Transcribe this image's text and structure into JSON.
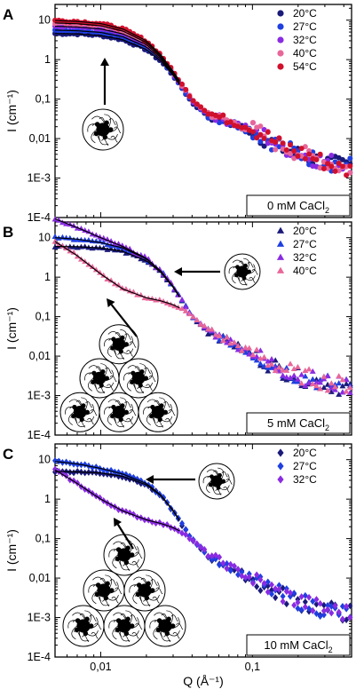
{
  "colors": {
    "20°C": "#1a1a7a",
    "27°C": "#1f3fe0",
    "32°C": "#8a2be2",
    "40°C": "#e8679a",
    "54°C": "#d0102c",
    "fit": "#000000"
  },
  "chart_data": [
    {
      "type": "scatter",
      "panel": "A",
      "marker": "circle",
      "xscale": "log",
      "yscale": "log",
      "xlim": [
        0.005,
        0.45
      ],
      "ylim": [
        0.0001,
        25
      ],
      "ylabel": "I (cm⁻¹)",
      "xlabel": "",
      "yticks": [
        "1E-4",
        "1E-3",
        "0,01",
        "0,1",
        "1",
        "10"
      ],
      "ytick_values": [
        0.0001,
        0.001,
        0.01,
        0.1,
        1,
        10
      ],
      "xticks": [],
      "xtick_values": [],
      "condition": "0 mM CaCl₂",
      "legend_loc": "top-right",
      "has_fit": true,
      "series": [
        {
          "name": "20°C",
          "color_key": "20°C",
          "x": [
            0.005,
            0.007,
            0.01,
            0.014,
            0.02,
            0.025,
            0.03,
            0.035,
            0.04,
            0.05,
            0.06,
            0.07,
            0.08,
            0.1,
            0.12,
            0.15,
            0.2,
            0.25,
            0.3,
            0.4
          ],
          "y": [
            4.6,
            4.5,
            4.1,
            3.2,
            1.8,
            0.9,
            0.4,
            0.17,
            0.08,
            0.04,
            0.03,
            0.025,
            0.021,
            0.015,
            0.01,
            0.0062,
            0.004,
            0.003,
            0.0025,
            0.002
          ]
        },
        {
          "name": "27°C",
          "color_key": "27°C",
          "x": [
            0.005,
            0.007,
            0.01,
            0.014,
            0.02,
            0.025,
            0.03,
            0.035,
            0.04,
            0.05,
            0.06,
            0.07,
            0.08,
            0.1,
            0.12,
            0.15,
            0.2,
            0.25,
            0.3,
            0.4
          ],
          "y": [
            5.6,
            5.4,
            4.9,
            3.8,
            2.1,
            1.0,
            0.42,
            0.18,
            0.085,
            0.042,
            0.031,
            0.026,
            0.022,
            0.016,
            0.011,
            0.0065,
            0.0042,
            0.0031,
            0.0026,
            0.0021
          ]
        },
        {
          "name": "32°C",
          "color_key": "32°C",
          "x": [
            0.005,
            0.007,
            0.01,
            0.014,
            0.02,
            0.025,
            0.03,
            0.035,
            0.04,
            0.05,
            0.06,
            0.07,
            0.08,
            0.1,
            0.12,
            0.15,
            0.2,
            0.25,
            0.3,
            0.4
          ],
          "y": [
            7.0,
            6.7,
            6.0,
            4.5,
            2.4,
            1.1,
            0.45,
            0.19,
            0.09,
            0.045,
            0.033,
            0.027,
            0.023,
            0.017,
            0.012,
            0.0068,
            0.0044,
            0.0032,
            0.0027,
            0.0022
          ]
        },
        {
          "name": "40°C",
          "color_key": "40°C",
          "x": [
            0.005,
            0.007,
            0.01,
            0.014,
            0.02,
            0.025,
            0.03,
            0.035,
            0.04,
            0.05,
            0.06,
            0.07,
            0.08,
            0.1,
            0.12,
            0.15,
            0.2,
            0.25,
            0.3,
            0.4
          ],
          "y": [
            8.5,
            8.1,
            7.2,
            5.3,
            2.7,
            1.2,
            0.48,
            0.2,
            0.095,
            0.046,
            0.034,
            0.028,
            0.023,
            0.017,
            0.012,
            0.0069,
            0.0045,
            0.0033,
            0.0026,
            0.0018
          ]
        },
        {
          "name": "54°C",
          "color_key": "54°C",
          "x": [
            0.005,
            0.007,
            0.01,
            0.014,
            0.02,
            0.025,
            0.03,
            0.035,
            0.04,
            0.05,
            0.06,
            0.07,
            0.08,
            0.1,
            0.12,
            0.15,
            0.2,
            0.25,
            0.3,
            0.4
          ],
          "y": [
            9.8,
            9.3,
            8.2,
            6.0,
            3.0,
            1.3,
            0.5,
            0.21,
            0.1,
            0.048,
            0.035,
            0.029,
            0.024,
            0.018,
            0.012,
            0.007,
            0.0046,
            0.0033,
            0.0025,
            0.0016
          ]
        }
      ],
      "annotations": [
        {
          "kind": "single-micelle",
          "arrow_to": [
            0.0085,
            3.5
          ]
        }
      ]
    },
    {
      "type": "scatter",
      "panel": "B",
      "marker": "triangle",
      "xscale": "log",
      "yscale": "log",
      "xlim": [
        0.005,
        0.45
      ],
      "ylim": [
        0.0001,
        25
      ],
      "ylabel": "I (cm⁻¹)",
      "xlabel": "",
      "yticks": [
        "1E-4",
        "1E-3",
        "0,01",
        "0,1",
        "1",
        "10"
      ],
      "ytick_values": [
        0.0001,
        0.001,
        0.01,
        0.1,
        1,
        10
      ],
      "xticks": [],
      "xtick_values": [],
      "condition": "5 mM CaCl₂",
      "legend_loc": "top-right",
      "has_fit": true,
      "series": [
        {
          "name": "20°C",
          "color_key": "20°C",
          "x": [
            0.005,
            0.007,
            0.01,
            0.014,
            0.02,
            0.025,
            0.03,
            0.035,
            0.04,
            0.05,
            0.06,
            0.07,
            0.08,
            0.1,
            0.12,
            0.15,
            0.2,
            0.25,
            0.3,
            0.4
          ],
          "y": [
            6.0,
            5.9,
            5.5,
            4.5,
            2.6,
            1.3,
            0.55,
            0.22,
            0.1,
            0.045,
            0.03,
            0.022,
            0.017,
            0.011,
            0.0075,
            0.0048,
            0.003,
            0.0024,
            0.002,
            0.0016
          ]
        },
        {
          "name": "27°C",
          "color_key": "27°C",
          "x": [
            0.005,
            0.007,
            0.01,
            0.014,
            0.02,
            0.025,
            0.03,
            0.035,
            0.04,
            0.05,
            0.06,
            0.07,
            0.08,
            0.1,
            0.12,
            0.15,
            0.2,
            0.25,
            0.3,
            0.4
          ],
          "y": [
            10.0,
            9.2,
            7.5,
            5.5,
            2.9,
            1.4,
            0.58,
            0.23,
            0.1,
            0.046,
            0.031,
            0.023,
            0.018,
            0.0115,
            0.0078,
            0.005,
            0.0031,
            0.0025,
            0.0021,
            0.0017
          ]
        },
        {
          "name": "32°C",
          "color_key": "32°C",
          "x": [
            0.005,
            0.007,
            0.01,
            0.014,
            0.02,
            0.025,
            0.03,
            0.035,
            0.04,
            0.05,
            0.06,
            0.07,
            0.08,
            0.1,
            0.12,
            0.15,
            0.2,
            0.25,
            0.3,
            0.4
          ],
          "y": [
            30,
            18,
            10,
            6.0,
            3.0,
            1.4,
            0.58,
            0.23,
            0.1,
            0.047,
            0.032,
            0.024,
            0.018,
            0.012,
            0.008,
            0.0051,
            0.0032,
            0.0026,
            0.0022,
            0.0018
          ]
        },
        {
          "name": "40°C",
          "color_key": "40°C",
          "x": [
            0.005,
            0.007,
            0.01,
            0.014,
            0.02,
            0.025,
            0.03,
            0.035,
            0.04,
            0.05,
            0.06,
            0.07,
            0.08,
            0.1,
            0.12,
            0.15,
            0.2,
            0.25,
            0.3,
            0.4
          ],
          "y": [
            8.0,
            3.5,
            1.2,
            0.5,
            0.3,
            0.25,
            0.2,
            0.15,
            0.1,
            0.05,
            0.032,
            0.024,
            0.018,
            0.012,
            0.0082,
            0.0052,
            0.0034,
            0.0027,
            0.0022,
            0.0019
          ]
        }
      ],
      "annotations": [
        {
          "kind": "single-micelle",
          "arrow_to": [
            0.025,
            1.5
          ]
        },
        {
          "kind": "micelle-cluster",
          "arrow_to": [
            0.009,
            1.2
          ]
        }
      ]
    },
    {
      "type": "scatter",
      "panel": "C",
      "marker": "diamond",
      "xscale": "log",
      "yscale": "log",
      "xlim": [
        0.005,
        0.45
      ],
      "ylim": [
        0.0001,
        25
      ],
      "ylabel": "I (cm⁻¹)",
      "xlabel": "Q (Å⁻¹)",
      "yticks": [
        "1E-4",
        "1E-3",
        "0,01",
        "0,1",
        "1",
        "10"
      ],
      "ytick_values": [
        0.0001,
        0.001,
        0.01,
        0.1,
        1,
        10
      ],
      "xticks": [
        "0,01",
        "0,1"
      ],
      "xtick_values": [
        0.01,
        0.1
      ],
      "condition": "10 mM CaCl₂",
      "legend_loc": "top-right",
      "has_fit": true,
      "series": [
        {
          "name": "20°C",
          "color_key": "20°C",
          "x": [
            0.005,
            0.007,
            0.01,
            0.014,
            0.02,
            0.025,
            0.03,
            0.035,
            0.04,
            0.05,
            0.06,
            0.07,
            0.08,
            0.1,
            0.12,
            0.15,
            0.2,
            0.25,
            0.3,
            0.4
          ],
          "y": [
            5.0,
            4.9,
            4.6,
            3.8,
            2.3,
            1.2,
            0.5,
            0.2,
            0.09,
            0.04,
            0.026,
            0.019,
            0.014,
            0.009,
            0.006,
            0.0039,
            0.0026,
            0.0019,
            0.0016,
            0.0013
          ]
        },
        {
          "name": "27°C",
          "color_key": "27°C",
          "x": [
            0.005,
            0.007,
            0.01,
            0.014,
            0.02,
            0.025,
            0.03,
            0.035,
            0.04,
            0.05,
            0.06,
            0.07,
            0.08,
            0.1,
            0.12,
            0.15,
            0.2,
            0.25,
            0.3,
            0.4
          ],
          "y": [
            9.0,
            7.8,
            6.0,
            4.3,
            2.5,
            1.25,
            0.52,
            0.21,
            0.095,
            0.042,
            0.027,
            0.02,
            0.015,
            0.0093,
            0.0063,
            0.004,
            0.0027,
            0.002,
            0.0016,
            0.0013
          ]
        },
        {
          "name": "32°C",
          "color_key": "32°C",
          "x": [
            0.005,
            0.007,
            0.01,
            0.014,
            0.02,
            0.025,
            0.03,
            0.035,
            0.04,
            0.05,
            0.06,
            0.07,
            0.08,
            0.1,
            0.12,
            0.15,
            0.2,
            0.25,
            0.3,
            0.4
          ],
          "y": [
            5.5,
            2.5,
            1.0,
            0.5,
            0.3,
            0.24,
            0.19,
            0.14,
            0.09,
            0.045,
            0.028,
            0.02,
            0.015,
            0.0095,
            0.0064,
            0.0041,
            0.0027,
            0.002,
            0.0016,
            0.0013
          ]
        }
      ],
      "annotations": [
        {
          "kind": "single-micelle",
          "arrow_to": [
            0.018,
            3.5
          ]
        },
        {
          "kind": "micelle-cluster",
          "arrow_to": [
            0.013,
            0.5
          ]
        }
      ]
    }
  ]
}
